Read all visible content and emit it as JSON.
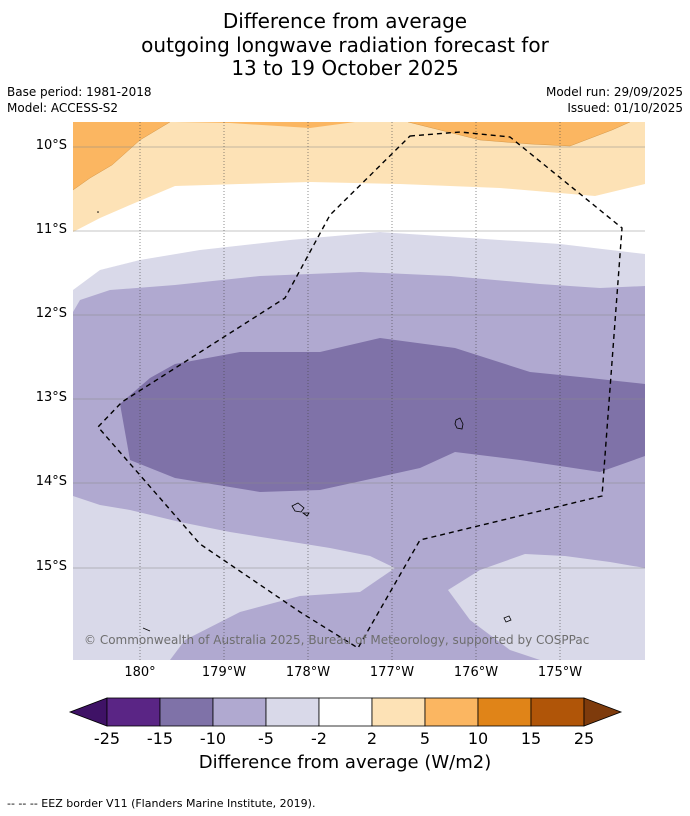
{
  "header": {
    "title_line1": "Difference from average",
    "title_line2": "outgoing longwave radiation forecast for",
    "title_line3": "13 to 19 October 2025",
    "base_period": "Base period: 1981-2018",
    "model": "Model: ACCESS-S2",
    "model_run": "Model run: 29/09/2025",
    "issued": "Issued: 01/10/2025"
  },
  "map": {
    "lat_labels": [
      "10°S",
      "11°S",
      "12°S",
      "13°S",
      "14°S",
      "15°S"
    ],
    "lon_labels": [
      "180°",
      "179°W",
      "178°W",
      "177°W",
      "176°W",
      "175°W"
    ],
    "credit": "© Commonwealth of Australia 2025, Bureau of Meteorology, supported by COSPPac"
  },
  "colorbar": {
    "ticks": [
      "-25",
      "-15",
      "-10",
      "-5",
      "-2",
      "2",
      "5",
      "10",
      "15",
      "25"
    ],
    "colors": [
      "#3f1266",
      "#5a2585",
      "#7f72a8",
      "#b0a9d0",
      "#d9d9e9",
      "#ffffff",
      "#fde2b6",
      "#fbb661",
      "#e08418",
      "#b05508",
      "#7e3b0c"
    ],
    "title": "Difference from average (W/m2)"
  },
  "footnote": "--  --  -- EEZ border V11 (Flanders Marine Institute, 2019)."
}
